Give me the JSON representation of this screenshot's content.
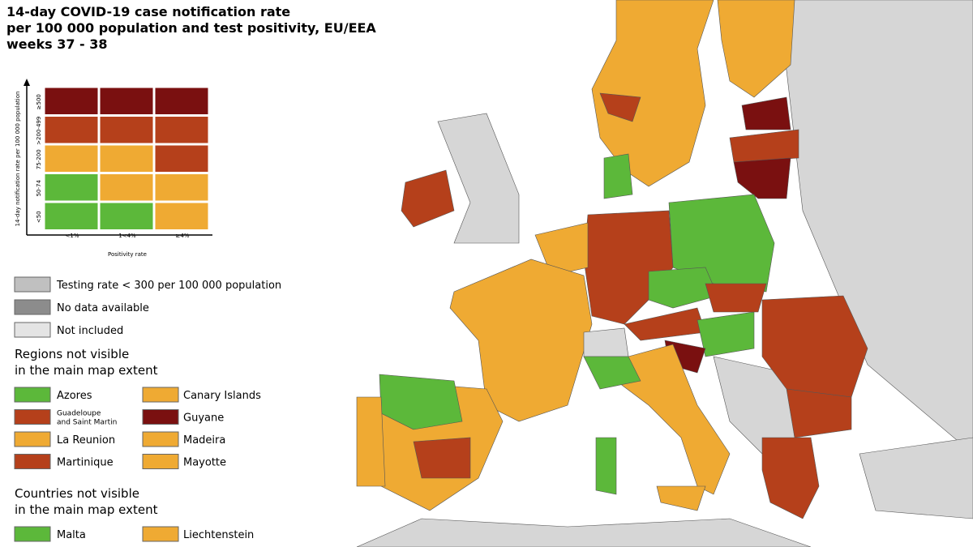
{
  "title": [
    "14-day COVID-19 case notification rate",
    "per 100 000 population and test positivity, EU/EEA",
    "weeks 37 - 38"
  ],
  "matrix": {
    "y_axis_label": "14-day notification rate per 100 000 population",
    "x_axis_label": "Positivity rate",
    "rows": [
      "≥500",
      ">200-499",
      "75-200",
      "50-74",
      "<50"
    ],
    "columns": [
      "<1%",
      "1<4%",
      "≥4%"
    ],
    "cell_colors": [
      [
        "#7a1010",
        "#7a1010",
        "#7a1010"
      ],
      [
        "#b5401b",
        "#b5401b",
        "#b5401b"
      ],
      [
        "#efaa33",
        "#efaa33",
        "#b5401b"
      ],
      [
        "#5cb83a",
        "#efaa33",
        "#efaa33"
      ],
      [
        "#5cb83a",
        "#5cb83a",
        "#efaa33"
      ]
    ]
  },
  "status_legend": [
    {
      "label": "Testing rate < 300 per 100 000 population",
      "color": "#c0c0c0"
    },
    {
      "label": "No data available",
      "color": "#8c8c8c"
    },
    {
      "label": "Not included",
      "color": "#e4e4e4"
    }
  ],
  "regions_heading": [
    "Regions not visible",
    "in the main map extent"
  ],
  "regions": [
    {
      "name": "Azores",
      "color": "#5cb83a"
    },
    {
      "name": [
        "Guadeloupe",
        "and Saint Martin"
      ],
      "color": "#b5401b"
    },
    {
      "name": "La Reunion",
      "color": "#efaa33"
    },
    {
      "name": "Martinique",
      "color": "#b5401b"
    },
    {
      "name": "Canary Islands",
      "color": "#efaa33"
    },
    {
      "name": "Guyane",
      "color": "#7a1010"
    },
    {
      "name": "Madeira",
      "color": "#efaa33"
    },
    {
      "name": "Mayotte",
      "color": "#efaa33"
    }
  ],
  "countries_heading": [
    "Countries not visible",
    "in the main map extent"
  ],
  "countries": [
    {
      "name": "Malta",
      "color": "#5cb83a"
    },
    {
      "name": "Liechtenstein",
      "color": "#efaa33"
    }
  ]
}
